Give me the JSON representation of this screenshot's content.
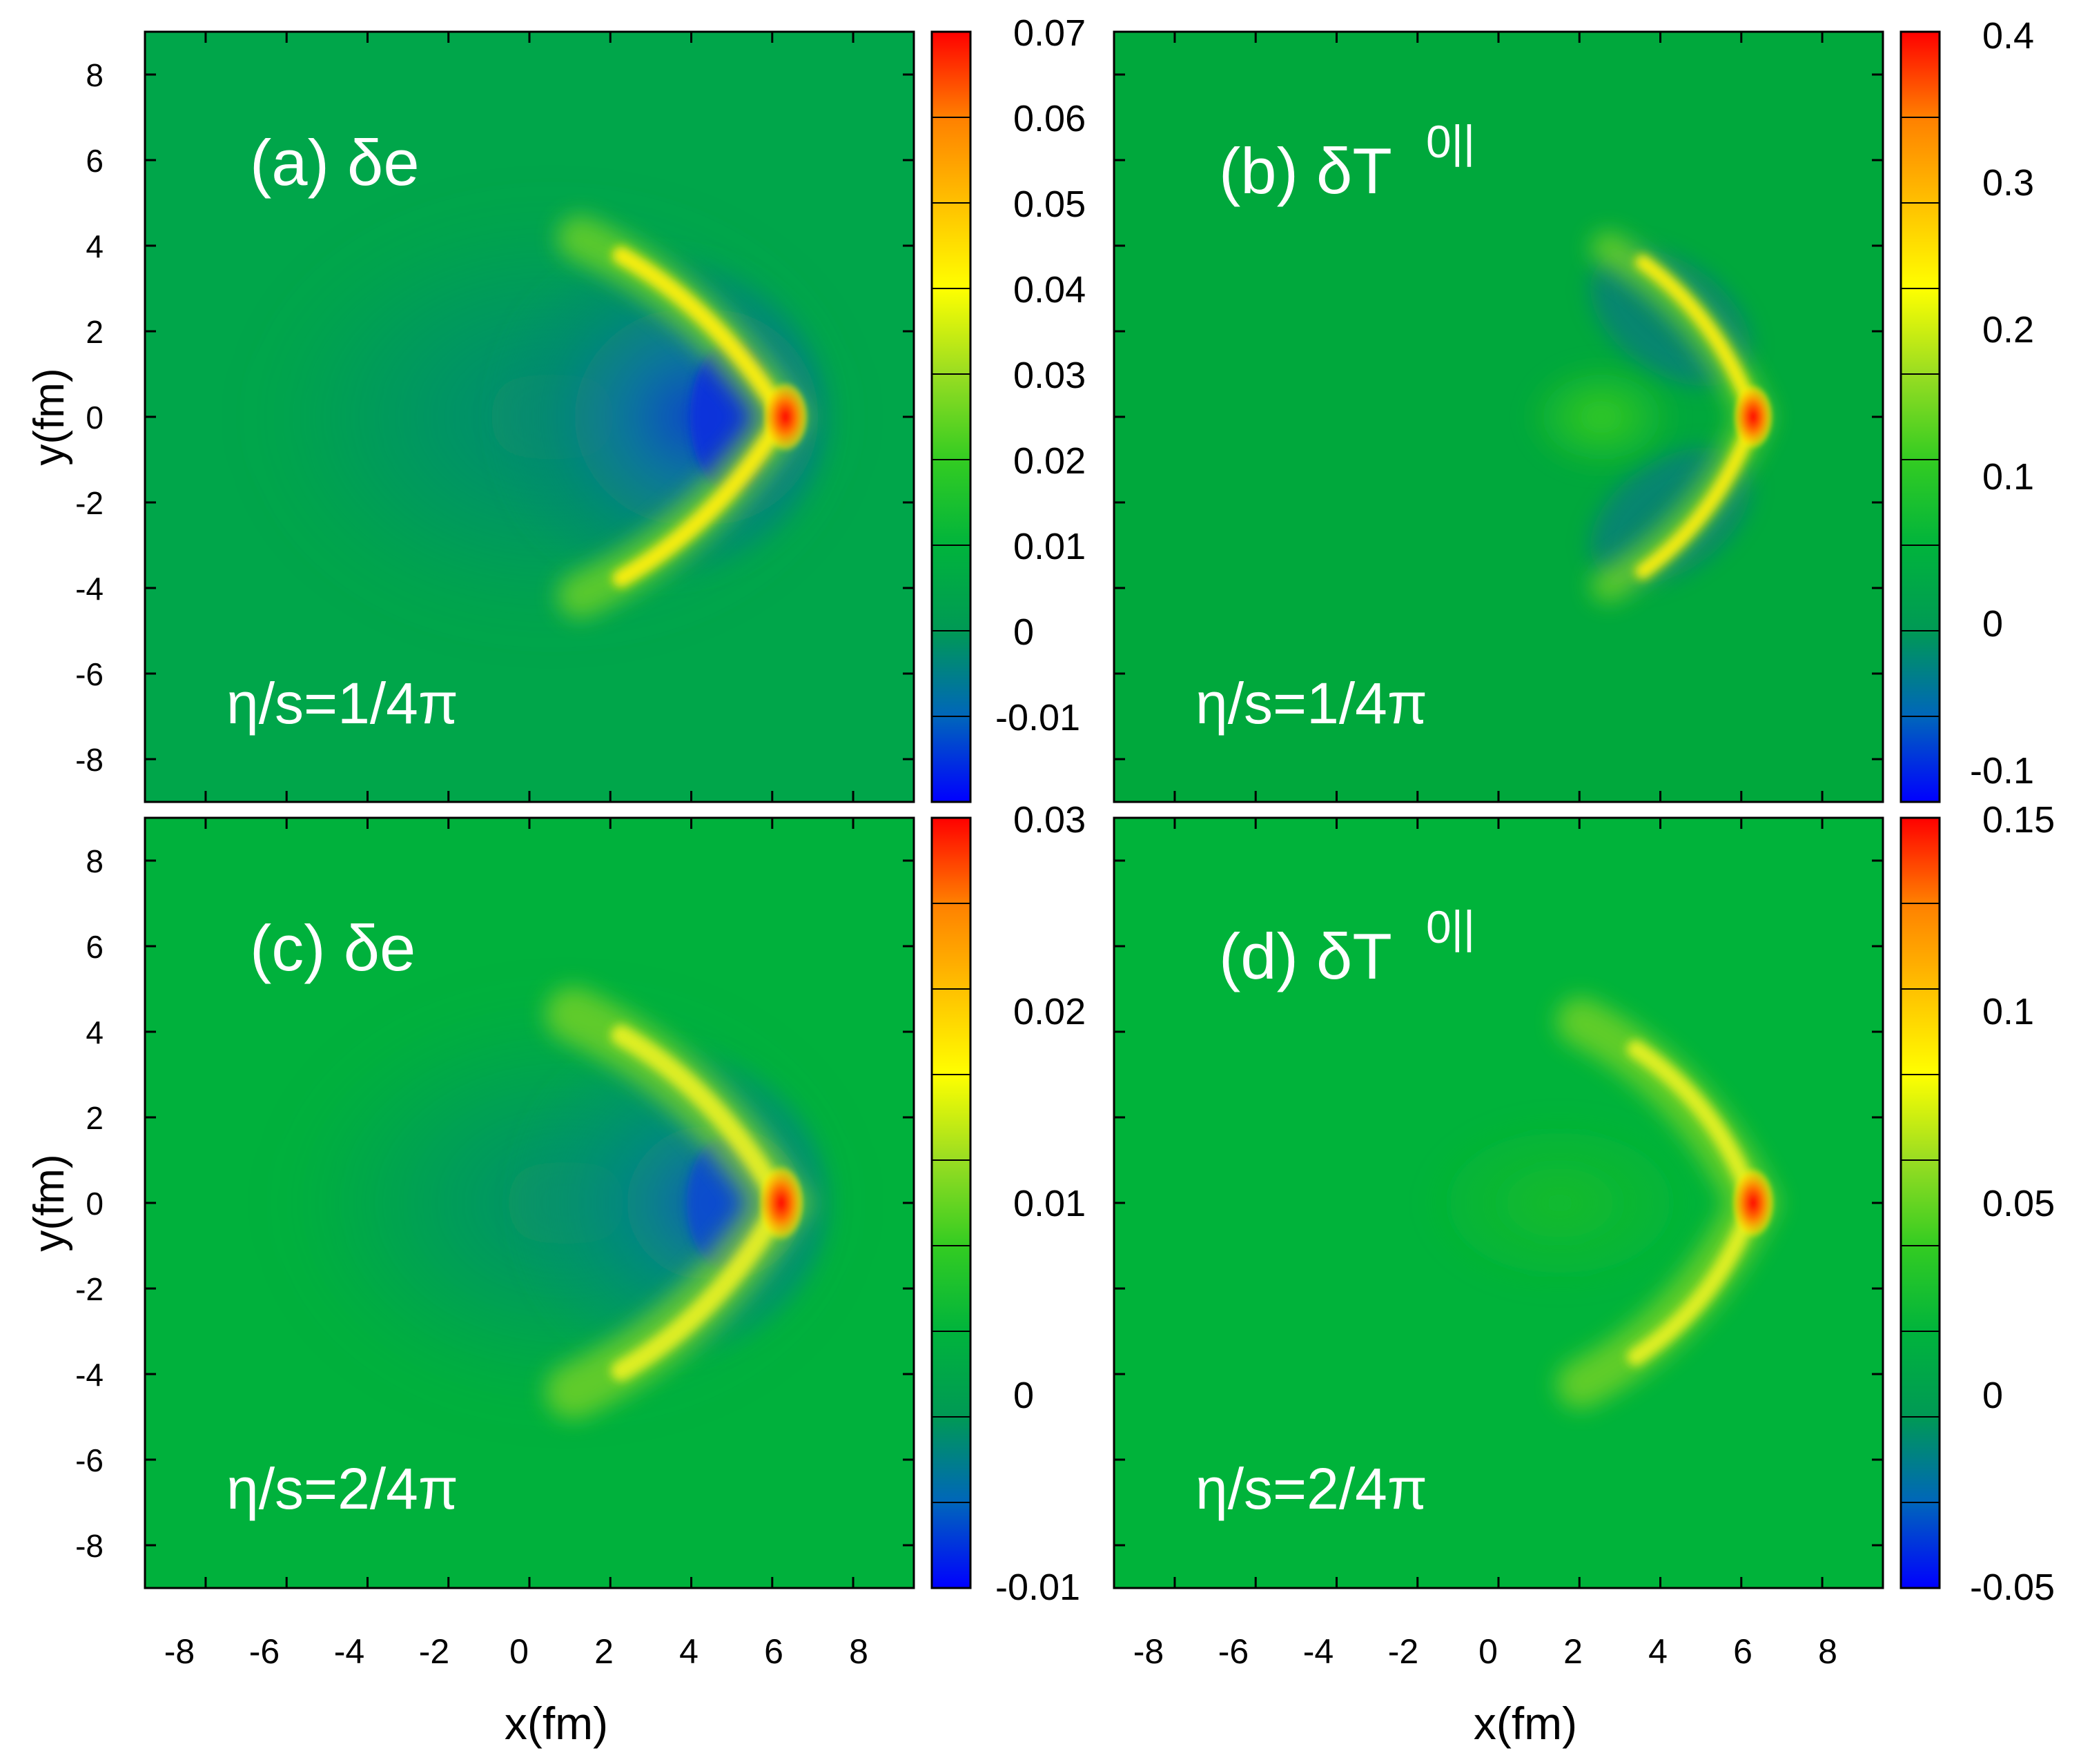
{
  "figure": {
    "x_label": "x(fm)",
    "y_label": "y(fm)"
  },
  "colormap": [
    "#0000ff",
    "#0066bb",
    "#009955",
    "#00b43c",
    "#33cc22",
    "#99dd22",
    "#ffff00",
    "#ffc000",
    "#ff8000",
    "#ff0000"
  ],
  "chart_data": [
    {
      "type": "heatmap",
      "title": "(a) δe",
      "label_main": "(a) δe",
      "label_sup": "",
      "viscosity": "η/s=1/4π",
      "xlabel": "x(fm)",
      "ylabel": "y(fm)",
      "xlim": [
        -9.5,
        9.5
      ],
      "ylim": [
        -9,
        9
      ],
      "x_ticks": [
        "-8",
        "-6",
        "-4",
        "-2",
        "0",
        "2",
        "4",
        "6",
        "8"
      ],
      "y_ticks": [
        "8",
        "6",
        "4",
        "2",
        "0",
        "-2",
        "-4",
        "-6",
        "-8"
      ],
      "colorbar": {
        "min": -0.018,
        "max": 0.072,
        "ticks": [
          "0.07",
          "0.06",
          "0.05",
          "0.04",
          "0.03",
          "0.02",
          "0.01",
          "0",
          "-0.01"
        ]
      },
      "features": {
        "wake_min": -0.017,
        "shock_peak": 0.07,
        "peak_x": 6.3,
        "peak_y": 0
      }
    },
    {
      "type": "heatmap",
      "title": "(b) δT^0||",
      "label_main": "(b) δT",
      "label_sup": "0||",
      "viscosity": "η/s=1/4π",
      "xlabel": "x(fm)",
      "ylabel": "y(fm)",
      "xlim": [
        -9.5,
        9.5
      ],
      "ylim": [
        -9,
        9
      ],
      "x_ticks": [
        "-8",
        "-6",
        "-4",
        "-2",
        "0",
        "2",
        "4",
        "6",
        "8"
      ],
      "y_ticks": [
        "8",
        "6",
        "4",
        "2",
        "0",
        "-2",
        "-4",
        "-6",
        "-8"
      ],
      "colorbar": {
        "min": -0.12,
        "max": 0.4,
        "ticks": [
          "0.4",
          "0.3",
          "0.2",
          "0.1",
          "0",
          "-0.1"
        ]
      },
      "features": {
        "wake_min": -0.06,
        "shock_peak": 0.4,
        "peak_x": 6.3,
        "peak_y": 0
      }
    },
    {
      "type": "heatmap",
      "title": "(c) δe",
      "label_main": "(c) δe",
      "label_sup": "",
      "viscosity": "η/s=2/4π",
      "xlabel": "x(fm)",
      "ylabel": "y(fm)",
      "xlim": [
        -9.5,
        9.5
      ],
      "ylim": [
        -9,
        9
      ],
      "x_ticks": [
        "-8",
        "-6",
        "-4",
        "-2",
        "0",
        "2",
        "4",
        "6",
        "8"
      ],
      "y_ticks": [
        "8",
        "6",
        "4",
        "2",
        "0",
        "-2",
        "-4",
        "-6",
        "-8"
      ],
      "colorbar": {
        "min": -0.01,
        "max": 0.03,
        "ticks": [
          "0.03",
          "0.02",
          "0.01",
          "0",
          "-0.01"
        ]
      },
      "features": {
        "wake_min": -0.008,
        "shock_peak": 0.028,
        "peak_x": 6.3,
        "peak_y": 0
      }
    },
    {
      "type": "heatmap",
      "title": "(d) δT^0||",
      "label_main": "(d) δT",
      "label_sup": "0||",
      "viscosity": "η/s=2/4π",
      "xlabel": "x(fm)",
      "ylabel": "y(fm)",
      "xlim": [
        -9.5,
        9.5
      ],
      "ylim": [
        -9,
        9
      ],
      "x_ticks": [
        "-8",
        "-6",
        "-4",
        "-2",
        "0",
        "2",
        "4",
        "6",
        "8"
      ],
      "y_ticks": [
        "8",
        "6",
        "4",
        "2",
        "0",
        "-2",
        "-4",
        "-6",
        "-8"
      ],
      "colorbar": {
        "min": -0.05,
        "max": 0.15,
        "ticks": [
          "0.15",
          "0.1",
          "0.05",
          "0",
          "-0.05"
        ]
      },
      "features": {
        "wake_min": 0.0,
        "shock_peak": 0.15,
        "peak_x": 6.3,
        "peak_y": 0
      }
    }
  ]
}
